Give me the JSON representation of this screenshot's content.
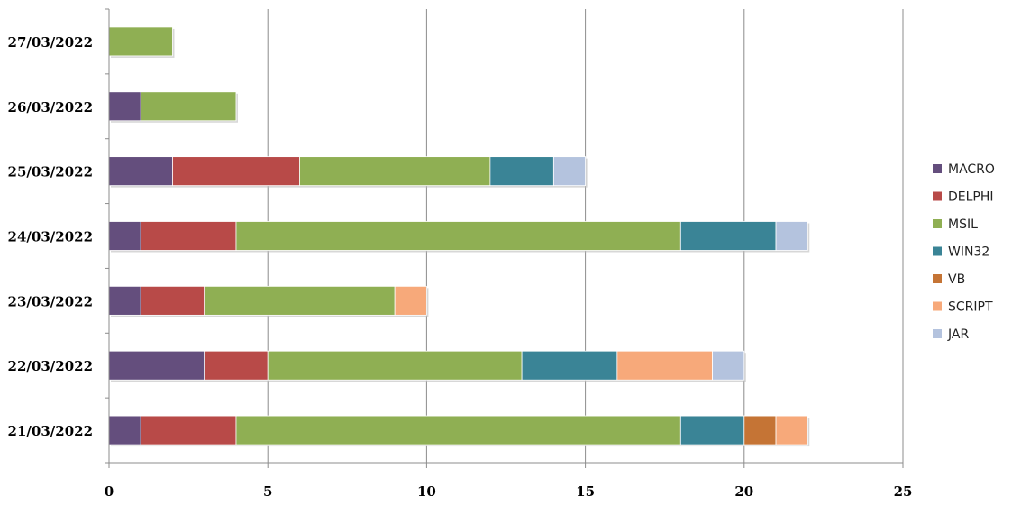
{
  "chart_data": {
    "type": "bar",
    "orientation": "horizontal",
    "stacked": true,
    "categories": [
      "21/03/2022",
      "22/03/2022",
      "23/03/2022",
      "24/03/2022",
      "25/03/2022",
      "26/03/2022",
      "27/03/2022"
    ],
    "series": [
      {
        "name": "MACRO",
        "color": "#644E7D",
        "values": [
          1,
          3,
          1,
          1,
          2,
          1,
          0
        ]
      },
      {
        "name": "DELPHI",
        "color": "#B84A48",
        "values": [
          3,
          2,
          2,
          3,
          4,
          0,
          0
        ]
      },
      {
        "name": "MSIL",
        "color": "#8FAF53",
        "values": [
          14,
          8,
          6,
          14,
          6,
          3,
          2
        ]
      },
      {
        "name": "WIN32",
        "color": "#3A8496",
        "values": [
          2,
          3,
          0,
          3,
          2,
          0,
          0
        ]
      },
      {
        "name": "VB",
        "color": "#C57435",
        "values": [
          1,
          0,
          0,
          0,
          0,
          0,
          0
        ]
      },
      {
        "name": "SCRIPT",
        "color": "#F7A97A",
        "values": [
          1,
          3,
          1,
          0,
          0,
          0,
          0
        ]
      },
      {
        "name": "JAR",
        "color": "#B4C3DE",
        "values": [
          0,
          1,
          0,
          1,
          1,
          0,
          0
        ]
      }
    ],
    "xlim": [
      0,
      25
    ],
    "xticks": [
      "0",
      "5",
      "10",
      "15",
      "20",
      "25"
    ],
    "grid": true,
    "legend_position": "right"
  }
}
